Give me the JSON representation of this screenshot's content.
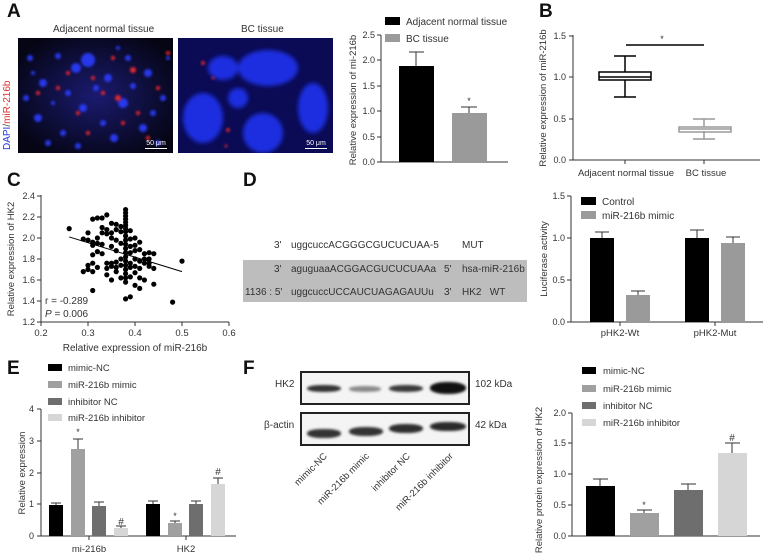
{
  "figure": {
    "panel_labels": [
      "A",
      "B",
      "C",
      "D",
      "E",
      "F"
    ]
  },
  "panelA": {
    "image_titles": [
      "Adjacent normal tissue",
      "BC tissue"
    ],
    "stain_label_dapi": "DAPI",
    "stain_label_sep": "/",
    "stain_label_mir": "miR-216b",
    "scale_bar": "50 μm",
    "colors": {
      "dapi": "#2233dd",
      "mir": "#e03030"
    }
  },
  "panelD": {
    "rows": [
      {
        "pos": "3'",
        "seq": "uggcuccACGGGCGUCUCUAA-5",
        "end": "",
        "label": "MUT"
      },
      {
        "pos": "3'",
        "seq": "aguguaaACGGACGUCUCUAAa",
        "end": "5'",
        "label": "hsa-miR-216b"
      },
      {
        "pos": "1136 : 5'",
        "seq": "uggcuccUCCAUCUAGAGAUUu",
        "end": "3'",
        "label": "HK2   WT"
      }
    ]
  },
  "panelF": {
    "blots": [
      {
        "label": "HK2",
        "size": "102 kDa"
      },
      {
        "label": "β-actin",
        "size": "42 kDa"
      }
    ],
    "lanes": [
      "mimic-NC",
      "miR-216b mimic",
      "inhibitor NC",
      "miR-216b inhibitor"
    ]
  },
  "chart_data": [
    {
      "id": "A-bar",
      "type": "bar",
      "categories": [
        "Adjacent normal tissue",
        "BC tissue"
      ],
      "values": [
        1.88,
        0.95
      ],
      "errors": [
        0.28,
        0.11
      ],
      "colors": [
        "#000000",
        "#9a9a9a"
      ],
      "annotations": [
        "",
        "*"
      ],
      "ylabel": "Relative expression of mi-216b",
      "ylim": [
        0,
        2.5
      ],
      "yticks": [
        "0.0",
        "0.5",
        "1.0",
        "1.5",
        "2.0",
        "2.5"
      ],
      "legend": [
        "Adjacent normal tissue",
        "BC tissue"
      ],
      "legend_position": "top"
    },
    {
      "id": "B-box",
      "type": "box",
      "categories": [
        "Adjacent normal tissue",
        "BC tissue"
      ],
      "series": [
        {
          "name": "Adjacent normal tissue",
          "min": 0.75,
          "q1": 0.97,
          "median": 1.0,
          "q3": 1.05,
          "max": 1.25,
          "color": "#000000"
        },
        {
          "name": "BC tissue",
          "min": 0.26,
          "q1": 0.35,
          "median": 0.37,
          "q3": 0.39,
          "max": 0.5,
          "color": "#9a9a9a"
        }
      ],
      "ylabel": "Relative expression of miR-216b",
      "ylim": [
        0,
        1.5
      ],
      "yticks": [
        "0.0",
        "0.5",
        "1.0",
        "1.5"
      ],
      "significance": "*"
    },
    {
      "id": "C-scatter",
      "type": "scatter",
      "xlabel": "Relative expression of miR-216b",
      "ylabel": "Relative expression of HK2",
      "xlim": [
        0.2,
        0.6
      ],
      "ylim": [
        1.2,
        2.4
      ],
      "xticks": [
        "0.2",
        "0.3",
        "0.4",
        "0.5",
        "0.6"
      ],
      "yticks": [
        "1.2",
        "1.4",
        "1.6",
        "1.8",
        "2.0",
        "2.2",
        "2.4"
      ],
      "stats": {
        "r": "r = -0.289",
        "p_prefix": "P",
        "p_value": " = 0.006"
      },
      "trendline": {
        "x": [
          0.26,
          0.5
        ],
        "y": [
          2.01,
          1.68
        ]
      },
      "points": [
        [
          0.26,
          2.09
        ],
        [
          0.29,
          1.99
        ],
        [
          0.29,
          1.68
        ],
        [
          0.3,
          2.05
        ],
        [
          0.3,
          1.98
        ],
        [
          0.3,
          1.74
        ],
        [
          0.3,
          1.7
        ],
        [
          0.31,
          2.18
        ],
        [
          0.31,
          1.96
        ],
        [
          0.31,
          1.93
        ],
        [
          0.31,
          1.84
        ],
        [
          0.31,
          1.76
        ],
        [
          0.31,
          1.68
        ],
        [
          0.31,
          1.5
        ],
        [
          0.32,
          2.19
        ],
        [
          0.32,
          2.0
        ],
        [
          0.32,
          1.95
        ],
        [
          0.32,
          1.87
        ],
        [
          0.32,
          1.72
        ],
        [
          0.33,
          2.19
        ],
        [
          0.33,
          2.05
        ],
        [
          0.33,
          1.94
        ],
        [
          0.33,
          1.85
        ],
        [
          0.33,
          2.1
        ],
        [
          0.34,
          2.08
        ],
        [
          0.34,
          2.22
        ],
        [
          0.34,
          1.71
        ],
        [
          0.34,
          1.76
        ],
        [
          0.34,
          1.65
        ],
        [
          0.34,
          2.04
        ],
        [
          0.35,
          2.14
        ],
        [
          0.35,
          2.05
        ],
        [
          0.35,
          1.92
        ],
        [
          0.35,
          1.76
        ],
        [
          0.35,
          1.73
        ],
        [
          0.35,
          1.6
        ],
        [
          0.35,
          2.0
        ],
        [
          0.36,
          2.13
        ],
        [
          0.36,
          2.08
        ],
        [
          0.36,
          1.98
        ],
        [
          0.36,
          1.88
        ],
        [
          0.36,
          1.77
        ],
        [
          0.36,
          1.72
        ],
        [
          0.36,
          1.68
        ],
        [
          0.37,
          2.11
        ],
        [
          0.37,
          2.06
        ],
        [
          0.37,
          1.95
        ],
        [
          0.37,
          1.8
        ],
        [
          0.37,
          1.74
        ],
        [
          0.37,
          1.62
        ],
        [
          0.38,
          2.27
        ],
        [
          0.38,
          2.24
        ],
        [
          0.38,
          2.21
        ],
        [
          0.38,
          2.18
        ],
        [
          0.38,
          2.15
        ],
        [
          0.38,
          2.12
        ],
        [
          0.38,
          2.09
        ],
        [
          0.38,
          2.06
        ],
        [
          0.38,
          2.02
        ],
        [
          0.38,
          1.98
        ],
        [
          0.38,
          1.94
        ],
        [
          0.38,
          1.9
        ],
        [
          0.38,
          1.86
        ],
        [
          0.38,
          1.82
        ],
        [
          0.38,
          1.78
        ],
        [
          0.38,
          1.74
        ],
        [
          0.38,
          1.7
        ],
        [
          0.38,
          1.66
        ],
        [
          0.38,
          1.62
        ],
        [
          0.38,
          1.58
        ],
        [
          0.38,
          1.42
        ],
        [
          0.39,
          2.07
        ],
        [
          0.39,
          1.99
        ],
        [
          0.39,
          1.92
        ],
        [
          0.39,
          1.86
        ],
        [
          0.39,
          1.76
        ],
        [
          0.39,
          1.72
        ],
        [
          0.39,
          1.63
        ],
        [
          0.39,
          1.44
        ],
        [
          0.4,
          2.0
        ],
        [
          0.4,
          1.93
        ],
        [
          0.4,
          1.88
        ],
        [
          0.4,
          1.8
        ],
        [
          0.4,
          1.73
        ],
        [
          0.4,
          1.67
        ],
        [
          0.4,
          1.55
        ],
        [
          0.41,
          1.96
        ],
        [
          0.41,
          1.89
        ],
        [
          0.41,
          1.78
        ],
        [
          0.41,
          1.71
        ],
        [
          0.41,
          1.62
        ],
        [
          0.41,
          1.52
        ],
        [
          0.42,
          1.85
        ],
        [
          0.42,
          1.8
        ],
        [
          0.42,
          1.76
        ],
        [
          0.42,
          1.6
        ],
        [
          0.43,
          1.86
        ],
        [
          0.43,
          1.8
        ],
        [
          0.43,
          1.76
        ],
        [
          0.43,
          1.73
        ],
        [
          0.44,
          1.85
        ],
        [
          0.44,
          1.71
        ],
        [
          0.44,
          1.56
        ],
        [
          0.48,
          1.39
        ],
        [
          0.5,
          1.78
        ]
      ]
    },
    {
      "id": "D-bar",
      "type": "bar",
      "categories": [
        "pHK2-Wt",
        "pHK2-Mut"
      ],
      "series": [
        {
          "name": "Control",
          "values": [
            1.0,
            1.0
          ],
          "errors": [
            0.07,
            0.08
          ],
          "color": "#000000"
        },
        {
          "name": "miR-216b mimic",
          "values": [
            0.32,
            0.94
          ],
          "errors": [
            0.05,
            0.07
          ],
          "color": "#9a9a9a"
        }
      ],
      "annotations": [
        [
          "",
          "*"
        ],
        [
          "",
          ""
        ]
      ],
      "ylabel": "Luciferase activity",
      "ylim": [
        0,
        1.5
      ],
      "yticks": [
        "0.0",
        "0.5",
        "1.0",
        "1.5"
      ],
      "legend_position": "top-left"
    },
    {
      "id": "E-bar",
      "type": "bar",
      "categories": [
        "mi-216b",
        "HK2"
      ],
      "series": [
        {
          "name": "mimic-NC",
          "values": [
            0.97,
            1.0
          ],
          "errors": [
            0.07,
            0.1
          ],
          "color": "#000000"
        },
        {
          "name": "miR-216b mimic",
          "values": [
            2.77,
            0.42
          ],
          "errors": [
            0.3,
            0.06
          ],
          "color": "#a0a0a0"
        },
        {
          "name": "inhibitor NC",
          "values": [
            0.96,
            1.03
          ],
          "errors": [
            0.11,
            0.09
          ],
          "color": "#6e6e6e"
        },
        {
          "name": "miR-216b inhibitor",
          "values": [
            0.26,
            1.67
          ],
          "errors": [
            0.05,
            0.2
          ],
          "color": "#d6d6d6"
        }
      ],
      "annotations": [
        [
          "",
          ""
        ],
        [
          "*",
          "*"
        ],
        [
          "",
          ""
        ],
        [
          "#",
          "#"
        ]
      ],
      "ylabel": "Relative expression",
      "ylim": [
        0,
        4
      ],
      "yticks": [
        "0",
        "1",
        "2",
        "3",
        "4"
      ],
      "legend_position": "top"
    },
    {
      "id": "F-bar",
      "type": "bar",
      "categories": [
        "mimic-NC",
        "miR-216b mimic",
        "inhibitor NC",
        "miR-216b inhibitor"
      ],
      "values": [
        0.81,
        0.37,
        0.75,
        1.34
      ],
      "errors": [
        0.1,
        0.05,
        0.08,
        0.15
      ],
      "colors": [
        "#000000",
        "#a0a0a0",
        "#6e6e6e",
        "#d6d6d6"
      ],
      "annotations": [
        "",
        "*",
        "",
        "#"
      ],
      "ylabel": "Relative protein expression of HK2",
      "ylim": [
        0,
        2.0
      ],
      "yticks": [
        "0.0",
        "0.5",
        "1.0",
        "1.5",
        "2.0"
      ],
      "legend": [
        "mimic-NC",
        "miR-216b mimic",
        "inhibitor NC",
        "miR-216b inhibitor"
      ],
      "legend_position": "top"
    }
  ]
}
